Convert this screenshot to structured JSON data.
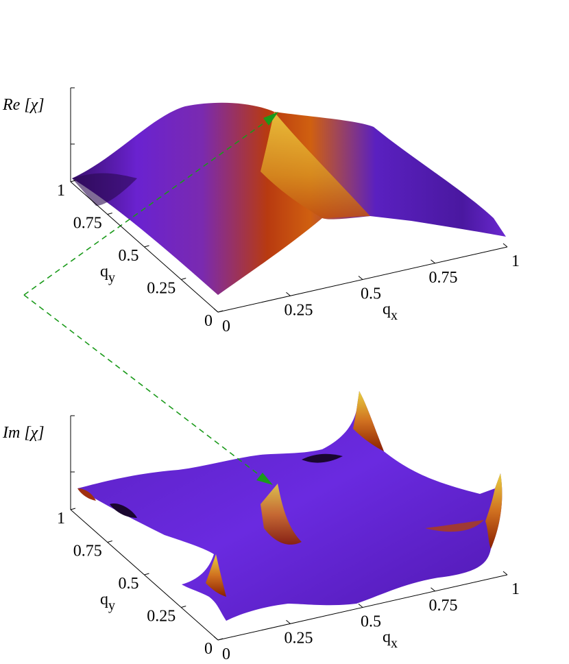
{
  "chart_data": [
    {
      "type": "surface",
      "z_label": "Re [χ]",
      "x_label": {
        "symbol": "q",
        "subscript": "x"
      },
      "y_label": {
        "symbol": "q",
        "subscript": "y"
      },
      "xlim": [
        0,
        1
      ],
      "xticks": [
        0,
        0.25,
        0.5,
        0.75,
        1
      ],
      "ylim": [
        0,
        1
      ],
      "yticks": [
        0,
        0.25,
        0.5,
        0.75,
        1
      ]
    },
    {
      "type": "surface",
      "z_label": "Im [χ]",
      "x_label": {
        "symbol": "q",
        "subscript": "x"
      },
      "y_label": {
        "symbol": "q",
        "subscript": "y"
      },
      "xlim": [
        0,
        1
      ],
      "xticks": [
        0,
        0.25,
        0.5,
        0.75,
        1
      ],
      "ylim": [
        0,
        1
      ],
      "yticks": [
        0,
        0.25,
        0.5,
        0.75,
        1
      ]
    }
  ]
}
